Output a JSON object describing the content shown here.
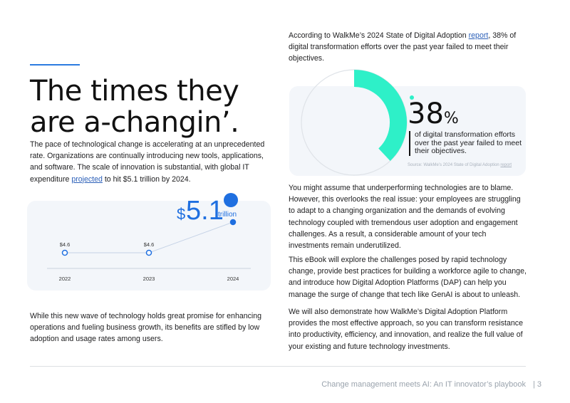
{
  "left": {
    "title_line1": "The times they",
    "title_line2": "are a-changin’.",
    "intro": {
      "before": "The pace of technological change is accelerating at an unprecedented rate. Organizations are continually introducing new tools, applications, and software. The scale of innovation is substantial, with global IT expenditure ",
      "link": "projected",
      "after": " to hit $5.1 trillion by 2024."
    },
    "closing": "While this new wave of technology holds great promise for enhancing operations and fueling business growth, its benefits are stifled by low adoption and usage rates among users."
  },
  "chart_data": {
    "type": "line",
    "headline": {
      "currency": "$",
      "amount": "5.1",
      "unit": "trillion"
    },
    "categories": [
      "2022",
      "2023",
      "2024"
    ],
    "values": [
      4.6,
      4.6,
      5.1
    ],
    "value_labels": [
      "$4.6",
      "$4.6",
      null
    ],
    "color": "#1f6fe0"
  },
  "right": {
    "intro": {
      "before": "According to WalkMe’s 2024 State of Digital Adoption ",
      "link": "report",
      "after": ", 38% of digital transformation efforts over the past year failed to meet their objectives."
    },
    "stat": {
      "value": 38,
      "unit": "%",
      "color": "#2ef0c8",
      "caption": "of digital transformation efforts over the past year failed to meet their objectives.",
      "source_before": "Source: WalkMe’s 2024 State of Digital Adoption ",
      "source_link": "report"
    },
    "paragraphs": [
      "You might assume that underperforming technologies are to blame. However, this overlooks the real issue: your employees are struggling to adapt to a changing organization and the demands of evolving technology coupled with tremendous user adoption and engagement challenges. As a result, a considerable amount of your tech investments remain underutilized.",
      "This eBook will explore the challenges posed by rapid technology change, provide best practices for building a workforce agile to change, and introduce how Digital Adoption Platforms (DAP) can help you manage the surge of change that tech like GenAI is about to unleash.",
      "We will also demonstrate how WalkMe’s Digital Adoption Platform provides the most effective approach, so you can transform resistance into productivity, efficiency, and innovation, and realize the full value of your existing and future technology investments."
    ]
  },
  "footer": {
    "title": "Change management meets AI: An IT innovator’s playbook",
    "page": "| 3"
  }
}
